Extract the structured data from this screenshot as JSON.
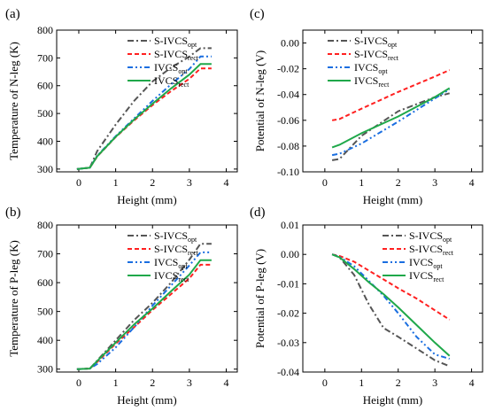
{
  "chart_data": [
    {
      "panel": "(a)",
      "type": "line",
      "xlabel": "Height (mm)",
      "ylabel": "Temperature of N-leg (K)",
      "xlim": [
        -0.6,
        4.3
      ],
      "ylim": [
        290,
        800
      ],
      "xticks": [
        0,
        1,
        2,
        3,
        4
      ],
      "yticks": [
        300,
        400,
        500,
        600,
        700,
        800
      ],
      "legend_position": "top-right",
      "series": [
        {
          "name": "S-IVCS",
          "sub": "opt",
          "color": "#555555",
          "dash": "dashdot",
          "x": [
            -0.05,
            0.3,
            0.5,
            1.0,
            1.5,
            2.0,
            2.5,
            3.0,
            3.3,
            3.6
          ],
          "y": [
            300,
            305,
            365,
            460,
            545,
            615,
            665,
            705,
            735,
            735
          ]
        },
        {
          "name": "S-IVCS",
          "sub": "rect",
          "color": "#ff2020",
          "dash": "dash",
          "x": [
            -0.05,
            0.3,
            0.5,
            1.0,
            1.5,
            2.0,
            2.5,
            3.0,
            3.3,
            3.6
          ],
          "y": [
            300,
            305,
            345,
            415,
            475,
            530,
            580,
            625,
            662,
            662
          ]
        },
        {
          "name": "IVCS",
          "sub": "opt",
          "color": "#1a6ee0",
          "dash": "dashdotdot",
          "x": [
            -0.05,
            0.3,
            0.5,
            1.0,
            1.5,
            2.0,
            2.5,
            3.0,
            3.3,
            3.6
          ],
          "y": [
            300,
            305,
            348,
            418,
            482,
            545,
            605,
            660,
            705,
            705
          ]
        },
        {
          "name": "IVCS",
          "sub": "rect",
          "color": "#1fa84a",
          "dash": "solid",
          "x": [
            -0.05,
            0.3,
            0.5,
            1.0,
            1.5,
            2.0,
            2.5,
            3.0,
            3.3,
            3.6
          ],
          "y": [
            300,
            305,
            346,
            416,
            478,
            535,
            590,
            640,
            678,
            678
          ]
        }
      ]
    },
    {
      "panel": "(c)",
      "type": "line",
      "xlabel": "Height (mm)",
      "ylabel": "Potential of N-leg (V)",
      "xlim": [
        -0.6,
        4.3
      ],
      "ylim": [
        -0.1,
        0.01
      ],
      "xticks": [
        0,
        1,
        2,
        3,
        4
      ],
      "yticks": [
        -0.1,
        -0.08,
        -0.06,
        -0.04,
        -0.02,
        0.0
      ],
      "ytick_labels": [
        "-0.10",
        "-0.08",
        "-0.06",
        "-0.04",
        "-0.02",
        "0.00"
      ],
      "legend_position": "top-center",
      "series": [
        {
          "name": "S-IVCS",
          "sub": "opt",
          "color": "#555555",
          "dash": "dashdot",
          "x": [
            0.2,
            0.4,
            1.0,
            2.0,
            3.0,
            3.4
          ],
          "y": [
            -0.091,
            -0.09,
            -0.072,
            -0.053,
            -0.042,
            -0.039
          ]
        },
        {
          "name": "S-IVCS",
          "sub": "rect",
          "color": "#ff2020",
          "dash": "dash",
          "x": [
            0.2,
            0.4,
            1.0,
            2.0,
            3.0,
            3.4
          ],
          "y": [
            -0.06,
            -0.059,
            -0.051,
            -0.038,
            -0.026,
            -0.021
          ]
        },
        {
          "name": "IVCS",
          "sub": "opt",
          "color": "#1a6ee0",
          "dash": "dashdotdot",
          "x": [
            0.2,
            0.4,
            1.0,
            2.0,
            3.0,
            3.4
          ],
          "y": [
            -0.087,
            -0.086,
            -0.078,
            -0.061,
            -0.043,
            -0.036
          ]
        },
        {
          "name": "IVCS",
          "sub": "rect",
          "color": "#1fa84a",
          "dash": "solid",
          "x": [
            0.2,
            0.4,
            1.0,
            2.0,
            3.0,
            3.4
          ],
          "y": [
            -0.081,
            -0.079,
            -0.07,
            -0.057,
            -0.042,
            -0.035
          ]
        }
      ]
    },
    {
      "panel": "(b)",
      "type": "line",
      "xlabel": "Height (mm)",
      "ylabel": "Temperature of P-leg (K)",
      "xlim": [
        -0.6,
        4.3
      ],
      "ylim": [
        290,
        800
      ],
      "xticks": [
        0,
        1,
        2,
        3,
        4
      ],
      "yticks": [
        300,
        400,
        500,
        600,
        700,
        800
      ],
      "legend_position": "top-right",
      "series": [
        {
          "name": "S-IVCS",
          "sub": "opt",
          "color": "#555555",
          "dash": "dashdot",
          "x": [
            -0.05,
            0.3,
            0.5,
            1.0,
            1.5,
            2.0,
            2.5,
            3.0,
            3.3,
            3.6
          ],
          "y": [
            300,
            302,
            330,
            400,
            470,
            530,
            600,
            680,
            735,
            735
          ]
        },
        {
          "name": "S-IVCS",
          "sub": "rect",
          "color": "#ff2020",
          "dash": "dash",
          "x": [
            -0.05,
            0.3,
            0.5,
            1.0,
            1.5,
            2.0,
            2.5,
            3.0,
            3.3,
            3.6
          ],
          "y": [
            300,
            302,
            325,
            388,
            445,
            505,
            560,
            615,
            662,
            662
          ]
        },
        {
          "name": "IVCS",
          "sub": "opt",
          "color": "#1a6ee0",
          "dash": "dashdotdot",
          "x": [
            -0.05,
            0.3,
            0.5,
            1.0,
            1.5,
            2.0,
            2.5,
            3.0,
            3.3,
            3.6
          ],
          "y": [
            300,
            302,
            318,
            375,
            445,
            520,
            590,
            660,
            705,
            705
          ]
        },
        {
          "name": "IVCS",
          "sub": "rect",
          "color": "#1fa84a",
          "dash": "solid",
          "x": [
            -0.05,
            0.3,
            0.5,
            1.0,
            1.5,
            2.0,
            2.5,
            3.0,
            3.3,
            3.6
          ],
          "y": [
            300,
            302,
            328,
            392,
            455,
            510,
            570,
            628,
            678,
            678
          ]
        }
      ]
    },
    {
      "panel": "(d)",
      "type": "line",
      "xlabel": "Height (mm)",
      "ylabel": "Potential of P-leg (V)",
      "xlim": [
        -0.6,
        4.3
      ],
      "ylim": [
        -0.04,
        0.01
      ],
      "xticks": [
        0,
        1,
        2,
        3,
        4
      ],
      "yticks": [
        -0.04,
        -0.03,
        -0.02,
        -0.01,
        0.0,
        0.01
      ],
      "ytick_labels": [
        "-0.04",
        "-0.03",
        "-0.02",
        "-0.01",
        "0.00",
        "0.01"
      ],
      "legend_position": "top-right",
      "series": [
        {
          "name": "S-IVCS",
          "sub": "opt",
          "color": "#555555",
          "dash": "dashdot",
          "x": [
            0.2,
            0.4,
            0.8,
            1.2,
            1.6,
            2.0,
            2.5,
            3.0,
            3.4
          ],
          "y": [
            0.0,
            -0.001,
            -0.007,
            -0.017,
            -0.025,
            -0.028,
            -0.032,
            -0.036,
            -0.038
          ]
        },
        {
          "name": "S-IVCS",
          "sub": "rect",
          "color": "#ff2020",
          "dash": "dash",
          "x": [
            0.2,
            0.4,
            0.8,
            1.2,
            1.6,
            2.0,
            2.5,
            3.0,
            3.4
          ],
          "y": [
            0.0,
            -0.0005,
            -0.0025,
            -0.0055,
            -0.0085,
            -0.0115,
            -0.015,
            -0.019,
            -0.0222
          ]
        },
        {
          "name": "IVCS",
          "sub": "opt",
          "color": "#1a6ee0",
          "dash": "dashdotdot",
          "x": [
            0.2,
            0.4,
            0.8,
            1.2,
            1.6,
            2.0,
            2.5,
            3.0,
            3.4
          ],
          "y": [
            0.0,
            -0.0008,
            -0.004,
            -0.009,
            -0.014,
            -0.02,
            -0.028,
            -0.034,
            -0.0355
          ]
        },
        {
          "name": "IVCS",
          "sub": "rect",
          "color": "#1fa84a",
          "dash": "solid",
          "x": [
            0.2,
            0.4,
            0.8,
            1.2,
            1.6,
            2.0,
            2.5,
            3.0,
            3.4
          ],
          "y": [
            0.0,
            -0.001,
            -0.005,
            -0.0095,
            -0.0135,
            -0.018,
            -0.024,
            -0.03,
            -0.0345
          ]
        }
      ]
    }
  ]
}
